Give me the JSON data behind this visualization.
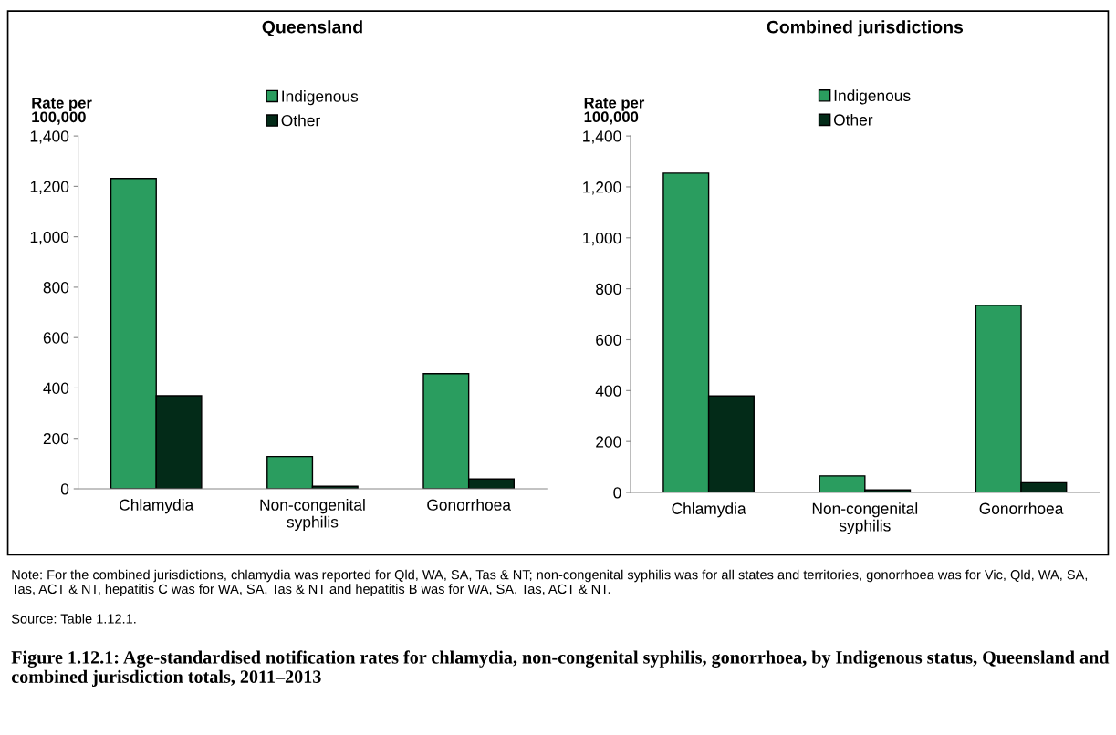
{
  "chart_data": [
    {
      "type": "bar",
      "title": "Queensland",
      "ylabel": "Rate per\n100,000",
      "categories": [
        "Chlamydia",
        "Non-congenital\nsyphilis",
        "Gonorrhoea"
      ],
      "series": [
        {
          "name": "Indigenous",
          "color": "#2a9d5f",
          "values": [
            1231,
            128,
            457
          ]
        },
        {
          "name": "Other",
          "color": "#032b18",
          "values": [
            369,
            10,
            39
          ]
        }
      ],
      "ylim": [
        0,
        1400
      ],
      "yticks": [
        {
          "value": 0,
          "label": "0"
        },
        {
          "value": 200,
          "label": "200"
        },
        {
          "value": 400,
          "label": "400"
        },
        {
          "value": 600,
          "label": "600"
        },
        {
          "value": 800,
          "label": "800"
        },
        {
          "value": 1000,
          "label": "1,000"
        },
        {
          "value": 1200,
          "label": "1,200"
        },
        {
          "value": 1400,
          "label": "1,400"
        }
      ],
      "grid": false,
      "legend": "top"
    },
    {
      "type": "bar",
      "title": "Combined jurisdictions",
      "ylabel": "Rate per\n100,000",
      "categories": [
        "Chlamydia",
        "Non-congenital\nsyphilis",
        "Gonorrhoea"
      ],
      "series": [
        {
          "name": "Indigenous",
          "color": "#2a9d5f",
          "values": [
            1254,
            65,
            735
          ]
        },
        {
          "name": "Other",
          "color": "#032b18",
          "values": [
            379,
            10,
            38
          ]
        }
      ],
      "ylim": [
        0,
        1400
      ],
      "yticks": [
        {
          "value": 0,
          "label": "0"
        },
        {
          "value": 200,
          "label": "200"
        },
        {
          "value": 400,
          "label": "400"
        },
        {
          "value": 600,
          "label": "600"
        },
        {
          "value": 800,
          "label": "800"
        },
        {
          "value": 1000,
          "label": "1,000"
        },
        {
          "value": 1200,
          "label": "1,200"
        },
        {
          "value": 1400,
          "label": "1,400"
        }
      ],
      "grid": false,
      "legend": "top",
      "annotations": [
        "Note: For the combined jurisdictions, chlamydia was reported for Qld, WA, SA, Tas & NT; non-congenital syphilis was for all states and territories, gonorrhoea was for Vic, Qld, WA, SA, Tas, ACT & NT, hepatitis C was for WA, SA, Tas & NT and hepatitis B was for WA, SA, Tas, ACT & NT.",
        "Source: Table 1.12.1.",
        "Figure 1.12.1: Age-standardised notification rates for chlamydia, non-congenital syphilis, gonorrhoea, by Indigenous status, Queensland and combined jurisdiction totals, 2011–2013"
      ]
    }
  ]
}
